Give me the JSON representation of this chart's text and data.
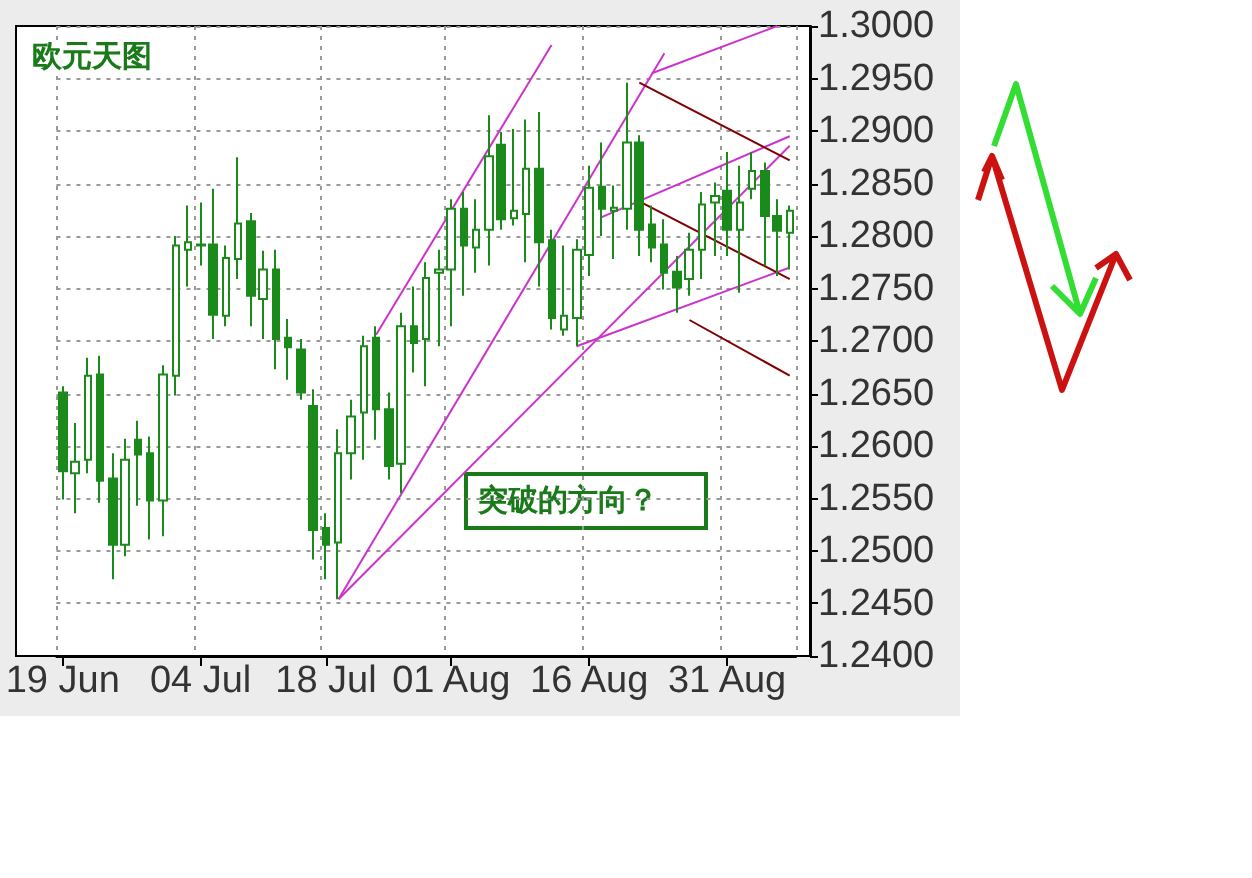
{
  "chart_data": {
    "type": "candlestick",
    "title": "欧元天图",
    "annotations": [
      "突破的方向？"
    ],
    "color": "#1a8a1a",
    "grid": true,
    "categories": [
      "19 Jun",
      null,
      null,
      null,
      null,
      null,
      null,
      null,
      null,
      null,
      null,
      "04 Jul",
      null,
      null,
      null,
      null,
      null,
      null,
      null,
      null,
      null,
      "18 Jul",
      null,
      null,
      null,
      null,
      null,
      null,
      null,
      null,
      null,
      "01 Aug",
      null,
      null,
      null,
      null,
      null,
      null,
      null,
      null,
      null,
      null,
      "16 Aug",
      null,
      null,
      null,
      null,
      null,
      null,
      null,
      null,
      null,
      null,
      "31 Aug",
      null,
      null,
      null,
      null,
      null
    ],
    "ylim": [
      1.24,
      1.3
    ],
    "yticks": [
      {
        "value": 1.24,
        "label": "1.2400"
      },
      {
        "value": 1.245,
        "label": "1.2450"
      },
      {
        "value": 1.25,
        "label": "1.2500"
      },
      {
        "value": 1.255,
        "label": "1.2550"
      },
      {
        "value": 1.26,
        "label": "1.2600"
      },
      {
        "value": 1.265,
        "label": "1.2650"
      },
      {
        "value": 1.27,
        "label": "1.2700"
      },
      {
        "value": 1.275,
        "label": "1.2750"
      },
      {
        "value": 1.28,
        "label": "1.2800"
      },
      {
        "value": 1.285,
        "label": "1.2850"
      },
      {
        "value": 1.29,
        "label": "1.2900"
      },
      {
        "value": 1.295,
        "label": "1.2950"
      },
      {
        "value": 1.3,
        "label": "1.3000"
      }
    ],
    "ohlc": [
      [
        1.2651,
        1.2657,
        1.2549,
        1.2576
      ],
      [
        1.2574,
        1.2622,
        1.2536,
        1.2585
      ],
      [
        1.2587,
        1.2684,
        1.2574,
        1.2667
      ],
      [
        1.2668,
        1.2686,
        1.2546,
        1.2567
      ],
      [
        1.2569,
        1.2593,
        1.2473,
        1.2506
      ],
      [
        1.2506,
        1.2607,
        1.2495,
        1.2587
      ],
      [
        1.2606,
        1.2624,
        1.2543,
        1.2592
      ],
      [
        1.2593,
        1.2609,
        1.2511,
        1.2548
      ],
      [
        1.2548,
        1.2677,
        1.2514,
        1.2668
      ],
      [
        1.2667,
        1.28,
        1.2648,
        1.2791
      ],
      [
        1.2787,
        1.2829,
        1.2752,
        1.2794
      ],
      [
        1.2792,
        1.2832,
        1.2772,
        1.2791
      ],
      [
        1.2792,
        1.2845,
        1.2702,
        1.2725
      ],
      [
        1.2724,
        1.2791,
        1.2714,
        1.2779
      ],
      [
        1.2778,
        1.2875,
        1.2759,
        1.2812
      ],
      [
        1.2814,
        1.2822,
        1.2714,
        1.2743
      ],
      [
        1.274,
        1.2786,
        1.2702,
        1.2768
      ],
      [
        1.2768,
        1.2787,
        1.2673,
        1.2702
      ],
      [
        1.2703,
        1.2721,
        1.2663,
        1.2694
      ],
      [
        1.2692,
        1.2702,
        1.2644,
        1.2651
      ],
      [
        1.2638,
        1.2654,
        1.2492,
        1.252
      ],
      [
        1.2522,
        1.2536,
        1.2473,
        1.2506
      ],
      [
        1.2508,
        1.2616,
        1.2454,
        1.2593
      ],
      [
        1.2593,
        1.2644,
        1.2568,
        1.2628
      ],
      [
        1.2632,
        1.2705,
        1.2587,
        1.2695
      ],
      [
        1.2703,
        1.2714,
        1.2606,
        1.2635
      ],
      [
        1.2635,
        1.2651,
        1.2568,
        1.2581
      ],
      [
        1.2583,
        1.2727,
        1.2555,
        1.2714
      ],
      [
        1.2714,
        1.2752,
        1.267,
        1.2698
      ],
      [
        1.2702,
        1.2775,
        1.2657,
        1.276
      ],
      [
        1.2765,
        1.2787,
        1.2695,
        1.2768
      ],
      [
        1.2768,
        1.2835,
        1.2714,
        1.2826
      ],
      [
        1.2826,
        1.2842,
        1.2743,
        1.2791
      ],
      [
        1.2789,
        1.2835,
        1.2765,
        1.2806
      ],
      [
        1.2806,
        1.2915,
        1.2772,
        1.2876
      ],
      [
        1.2887,
        1.2899,
        1.2806,
        1.2816
      ],
      [
        1.2817,
        1.2902,
        1.281,
        1.2824
      ],
      [
        1.2821,
        1.2911,
        1.2775,
        1.2864
      ],
      [
        1.2864,
        1.2918,
        1.2752,
        1.2794
      ],
      [
        1.2796,
        1.2806,
        1.2711,
        1.2722
      ],
      [
        1.2711,
        1.2791,
        1.2705,
        1.2724
      ],
      [
        1.2722,
        1.2797,
        1.2695,
        1.2787
      ],
      [
        1.2782,
        1.2867,
        1.2762,
        1.2846
      ],
      [
        1.2847,
        1.2889,
        1.28,
        1.2826
      ],
      [
        1.2824,
        1.2848,
        1.2778,
        1.2827
      ],
      [
        1.2826,
        1.2946,
        1.2806,
        1.2889
      ],
      [
        1.2889,
        1.2896,
        1.2781,
        1.2806
      ],
      [
        1.2811,
        1.2829,
        1.2775,
        1.2789
      ],
      [
        1.2792,
        1.2816,
        1.2749,
        1.2765
      ],
      [
        1.2766,
        1.2781,
        1.2727,
        1.2751
      ],
      [
        1.2759,
        1.2803,
        1.2743,
        1.2787
      ],
      [
        1.2787,
        1.2842,
        1.2759,
        1.283
      ],
      [
        1.2832,
        1.2851,
        1.2781,
        1.2838
      ],
      [
        1.2843,
        1.288,
        1.2781,
        1.2806
      ],
      [
        1.2806,
        1.2867,
        1.2746,
        1.2832
      ],
      [
        1.2845,
        1.288,
        1.2835,
        1.2862
      ],
      [
        1.2862,
        1.287,
        1.2772,
        1.2819
      ],
      [
        1.2819,
        1.2835,
        1.2762,
        1.2805
      ],
      [
        1.2803,
        1.2829,
        1.2768,
        1.2824
      ]
    ],
    "series": [
      {
        "type": "line",
        "color": "#cc33cc",
        "values": [
          null,
          null,
          null,
          null,
          null,
          null,
          null,
          null,
          null,
          null,
          null,
          null,
          null,
          null,
          null,
          null,
          null,
          null,
          null,
          null,
          null,
          null,
          null,
          null,
          null,
          1.2706,
          null,
          null,
          null,
          null,
          null,
          null,
          null,
          null,
          null,
          null,
          null,
          null,
          null,
          1.2982,
          null,
          null,
          null,
          null,
          null,
          null,
          null,
          null,
          null,
          null,
          null,
          null,
          null,
          null,
          null,
          null,
          null,
          null,
          null
        ]
      },
      {
        "type": "line",
        "color": "#cc33cc",
        "values": [
          null,
          null,
          null,
          null,
          null,
          null,
          null,
          null,
          null,
          null,
          null,
          null,
          null,
          null,
          null,
          null,
          null,
          null,
          null,
          null,
          null,
          null,
          1.2454,
          null,
          null,
          null,
          null,
          null,
          null,
          null,
          null,
          null,
          null,
          null,
          null,
          null,
          null,
          null,
          null,
          null,
          null,
          null,
          null,
          null,
          null,
          null,
          null,
          null,
          1.2974,
          null,
          null,
          null,
          null,
          null,
          null,
          null,
          null,
          null,
          null
        ]
      },
      {
        "type": "line",
        "color": "#cc33cc",
        "values": [
          null,
          null,
          null,
          null,
          null,
          null,
          null,
          null,
          null,
          null,
          null,
          null,
          null,
          null,
          null,
          null,
          null,
          null,
          null,
          null,
          null,
          null,
          1.2454,
          null,
          null,
          null,
          null,
          null,
          null,
          null,
          null,
          null,
          null,
          null,
          null,
          null,
          null,
          null,
          null,
          null,
          null,
          null,
          null,
          null,
          null,
          null,
          null,
          null,
          null,
          null,
          null,
          null,
          null,
          null,
          null,
          null,
          null,
          null,
          1.2886
        ]
      },
      {
        "type": "line",
        "color": "#cc33cc",
        "values": [
          null,
          null,
          null,
          null,
          null,
          null,
          null,
          null,
          null,
          null,
          null,
          null,
          null,
          null,
          null,
          null,
          null,
          null,
          null,
          null,
          null,
          null,
          null,
          null,
          null,
          null,
          null,
          null,
          null,
          null,
          null,
          null,
          null,
          null,
          null,
          null,
          null,
          null,
          null,
          null,
          null,
          1.2695,
          null,
          null,
          null,
          null,
          null,
          null,
          null,
          null,
          null,
          null,
          null,
          null,
          null,
          null,
          null,
          null,
          1.277
        ]
      },
      {
        "type": "line",
        "color": "#cc33cc",
        "values": [
          null,
          null,
          null,
          null,
          null,
          null,
          null,
          null,
          null,
          null,
          null,
          null,
          null,
          null,
          null,
          null,
          null,
          null,
          null,
          null,
          null,
          null,
          null,
          null,
          null,
          null,
          null,
          null,
          null,
          null,
          null,
          null,
          null,
          null,
          null,
          null,
          null,
          null,
          null,
          null,
          null,
          null,
          null,
          1.2818,
          null,
          null,
          null,
          null,
          null,
          null,
          null,
          null,
          null,
          null,
          null,
          null,
          null,
          null,
          1.2895
        ]
      },
      {
        "type": "line",
        "color": "#cc33cc",
        "values": [
          null,
          null,
          null,
          null,
          null,
          null,
          null,
          null,
          null,
          null,
          null,
          null,
          null,
          null,
          null,
          null,
          null,
          null,
          null,
          null,
          null,
          null,
          null,
          null,
          null,
          null,
          null,
          null,
          null,
          null,
          null,
          null,
          null,
          null,
          null,
          null,
          null,
          null,
          null,
          null,
          null,
          null,
          null,
          null,
          null,
          null,
          null,
          1.2955,
          null,
          null,
          null,
          null,
          null,
          null,
          null,
          null,
          null,
          1.3,
          null
        ]
      },
      {
        "type": "line",
        "color": "#800000",
        "values": [
          null,
          null,
          null,
          null,
          null,
          null,
          null,
          null,
          null,
          null,
          null,
          null,
          null,
          null,
          null,
          null,
          null,
          null,
          null,
          null,
          null,
          null,
          null,
          null,
          null,
          null,
          null,
          null,
          null,
          null,
          null,
          null,
          null,
          null,
          null,
          null,
          null,
          null,
          null,
          null,
          null,
          null,
          null,
          null,
          null,
          null,
          1.2946,
          null,
          null,
          null,
          null,
          null,
          null,
          null,
          null,
          null,
          null,
          null,
          1.2872
        ]
      },
      {
        "type": "line",
        "color": "#800000",
        "values": [
          null,
          null,
          null,
          null,
          null,
          null,
          null,
          null,
          null,
          null,
          null,
          null,
          null,
          null,
          null,
          null,
          null,
          null,
          null,
          null,
          null,
          null,
          null,
          null,
          null,
          null,
          null,
          null,
          null,
          null,
          null,
          null,
          null,
          null,
          null,
          null,
          null,
          null,
          null,
          null,
          null,
          null,
          null,
          null,
          null,
          null,
          1.2833,
          null,
          null,
          null,
          null,
          null,
          null,
          null,
          null,
          null,
          null,
          null,
          1.2759
        ]
      },
      {
        "type": "line",
        "color": "#800000",
        "values": [
          null,
          null,
          null,
          null,
          null,
          null,
          null,
          null,
          null,
          null,
          null,
          null,
          null,
          null,
          null,
          null,
          null,
          null,
          null,
          null,
          null,
          null,
          null,
          null,
          null,
          null,
          null,
          null,
          null,
          null,
          null,
          null,
          null,
          null,
          null,
          null,
          null,
          null,
          null,
          null,
          null,
          null,
          null,
          null,
          null,
          null,
          null,
          null,
          null,
          null,
          1.272,
          null,
          null,
          null,
          null,
          null,
          null,
          null,
          1.2667
        ]
      }
    ]
  }
}
